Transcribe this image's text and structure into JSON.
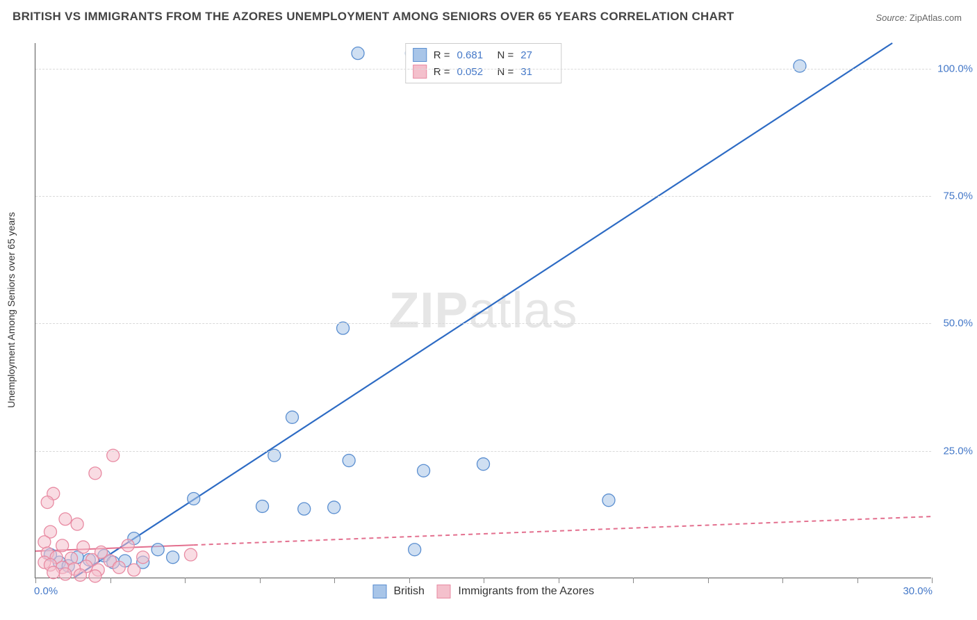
{
  "title": "BRITISH VS IMMIGRANTS FROM THE AZORES UNEMPLOYMENT AMONG SENIORS OVER 65 YEARS CORRELATION CHART",
  "source_label": "Source:",
  "source_value": "ZipAtlas.com",
  "watermark": {
    "bold": "ZIP",
    "rest": "atlas"
  },
  "chart": {
    "type": "scatter",
    "background_color": "#ffffff",
    "grid_color": "#d9d9d9",
    "axis_color": "#555555",
    "xlim": [
      0,
      30
    ],
    "ylim": [
      0,
      105
    ],
    "x_ticks": [
      0,
      2.5,
      5,
      7.5,
      10,
      12.5,
      15,
      17.5,
      20,
      22.5,
      25,
      27.5,
      30
    ],
    "x_tick_labels_shown": {
      "0": "0.0%",
      "30": "30.0%"
    },
    "y_ticks": [
      25,
      50,
      75,
      100
    ],
    "y_tick_labels": [
      "25.0%",
      "50.0%",
      "75.0%",
      "100.0%"
    ],
    "y_axis_label": "Unemployment Among Seniors over 65 years",
    "axis_label_fontsize": 14,
    "tick_label_fontsize": 15,
    "tick_label_color": "#4478c8",
    "marker_shape": "circle",
    "marker_radius": 9,
    "marker_opacity": 0.55,
    "marker_stroke_width": 1.3,
    "series": [
      {
        "name": "British",
        "label": "British",
        "color_fill": "#a8c5e8",
        "color_stroke": "#5a8ed0",
        "line_color": "#2d6bc4",
        "line_width": 2.2,
        "line_dash": "none",
        "r_value": "0.681",
        "n_value": "27",
        "trend": {
          "x1": 1.3,
          "y1": 0,
          "x2": 28.7,
          "y2": 105
        },
        "solid_until_x": 4.3,
        "points": [
          {
            "x": 10.8,
            "y": 103
          },
          {
            "x": 12.6,
            "y": 103
          },
          {
            "x": 25.6,
            "y": 100.5
          },
          {
            "x": 10.3,
            "y": 49
          },
          {
            "x": 8.6,
            "y": 31.5
          },
          {
            "x": 15.0,
            "y": 22.3
          },
          {
            "x": 19.2,
            "y": 15.2
          },
          {
            "x": 8.0,
            "y": 24
          },
          {
            "x": 10.5,
            "y": 23
          },
          {
            "x": 7.6,
            "y": 14
          },
          {
            "x": 9.0,
            "y": 13.5
          },
          {
            "x": 10.0,
            "y": 13.8
          },
          {
            "x": 5.3,
            "y": 15.5
          },
          {
            "x": 13.0,
            "y": 21
          },
          {
            "x": 12.7,
            "y": 5.5
          },
          {
            "x": 3.3,
            "y": 7.7
          },
          {
            "x": 4.1,
            "y": 5.5
          },
          {
            "x": 2.3,
            "y": 4.3
          },
          {
            "x": 1.8,
            "y": 3.5
          },
          {
            "x": 1.4,
            "y": 4.0
          },
          {
            "x": 3.0,
            "y": 3.3
          },
          {
            "x": 0.8,
            "y": 3.0
          },
          {
            "x": 1.1,
            "y": 2.3
          },
          {
            "x": 0.5,
            "y": 4.5
          },
          {
            "x": 2.6,
            "y": 3.0
          },
          {
            "x": 4.6,
            "y": 4.0
          },
          {
            "x": 3.6,
            "y": 3.0
          }
        ]
      },
      {
        "name": "Azores",
        "label": "Immigrants from the Azores",
        "color_fill": "#f4c0cc",
        "color_stroke": "#e88aa2",
        "line_color": "#e36f8e",
        "line_width": 2.0,
        "line_dash": "6,5",
        "r_value": "0.052",
        "n_value": "31",
        "trend": {
          "x1": 0,
          "y1": 5.2,
          "x2": 30,
          "y2": 12
        },
        "solid_until_x": 5.3,
        "points": [
          {
            "x": 2.6,
            "y": 24
          },
          {
            "x": 2.0,
            "y": 20.5
          },
          {
            "x": 0.6,
            "y": 16.5
          },
          {
            "x": 0.4,
            "y": 14.8
          },
          {
            "x": 1.0,
            "y": 11.5
          },
          {
            "x": 1.4,
            "y": 10.5
          },
          {
            "x": 0.5,
            "y": 9.0
          },
          {
            "x": 0.3,
            "y": 7.0
          },
          {
            "x": 0.9,
            "y": 6.3
          },
          {
            "x": 1.6,
            "y": 6.0
          },
          {
            "x": 2.2,
            "y": 5.0
          },
          {
            "x": 0.4,
            "y": 4.8
          },
          {
            "x": 0.7,
            "y": 4.0
          },
          {
            "x": 1.2,
            "y": 3.8
          },
          {
            "x": 1.9,
            "y": 3.5
          },
          {
            "x": 2.5,
            "y": 3.3
          },
          {
            "x": 3.1,
            "y": 6.3
          },
          {
            "x": 3.6,
            "y": 4.0
          },
          {
            "x": 0.3,
            "y": 3.0
          },
          {
            "x": 0.5,
            "y": 2.5
          },
          {
            "x": 0.9,
            "y": 2.0
          },
          {
            "x": 1.3,
            "y": 1.7
          },
          {
            "x": 1.7,
            "y": 2.2
          },
          {
            "x": 2.1,
            "y": 1.5
          },
          {
            "x": 2.8,
            "y": 2.0
          },
          {
            "x": 3.3,
            "y": 1.5
          },
          {
            "x": 5.2,
            "y": 4.5
          },
          {
            "x": 1.0,
            "y": 0.7
          },
          {
            "x": 0.6,
            "y": 1.0
          },
          {
            "x": 1.5,
            "y": 0.5
          },
          {
            "x": 2.0,
            "y": 0.3
          }
        ]
      }
    ],
    "legend_top": {
      "r_label": "R =",
      "n_label": "N ="
    },
    "legend_bottom_labels": [
      "British",
      "Immigrants from the Azores"
    ]
  }
}
